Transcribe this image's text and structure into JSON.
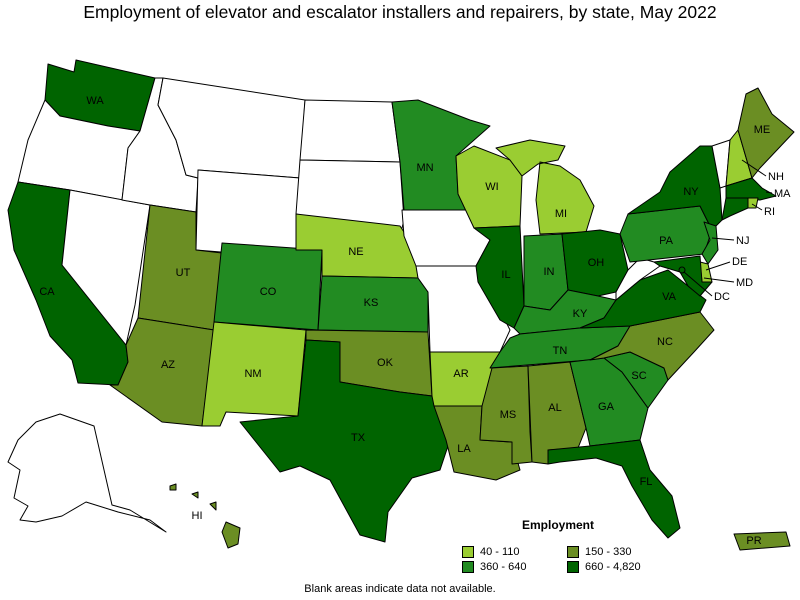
{
  "title": "Employment of elevator and escalator installers and repairers, by state, May 2022",
  "footnote": "Blank areas indicate data not available.",
  "legend": {
    "title": "Employment",
    "bins": [
      {
        "label": "40 - 110",
        "color": "#9acd32"
      },
      {
        "label": "150 - 330",
        "color": "#6b8e23"
      },
      {
        "label": "360 - 640",
        "color": "#228b22"
      },
      {
        "label": "660 - 4,820",
        "color": "#006400"
      }
    ]
  },
  "colors": {
    "no_data": "#ffffff",
    "bin1": "#9acd32",
    "bin2": "#6b8e23",
    "bin3": "#228b22",
    "bin4": "#006400"
  },
  "states": [
    {
      "abbr": "WA",
      "bin": "bin4"
    },
    {
      "abbr": "OR",
      "bin": "no_data"
    },
    {
      "abbr": "CA",
      "bin": "bin4"
    },
    {
      "abbr": "NV",
      "bin": "no_data"
    },
    {
      "abbr": "ID",
      "bin": "no_data"
    },
    {
      "abbr": "MT",
      "bin": "no_data"
    },
    {
      "abbr": "WY",
      "bin": "no_data"
    },
    {
      "abbr": "UT",
      "bin": "bin2"
    },
    {
      "abbr": "AZ",
      "bin": "bin2"
    },
    {
      "abbr": "CO",
      "bin": "bin3"
    },
    {
      "abbr": "NM",
      "bin": "bin1"
    },
    {
      "abbr": "ND",
      "bin": "no_data"
    },
    {
      "abbr": "SD",
      "bin": "no_data"
    },
    {
      "abbr": "NE",
      "bin": "bin1"
    },
    {
      "abbr": "KS",
      "bin": "bin3"
    },
    {
      "abbr": "OK",
      "bin": "bin2"
    },
    {
      "abbr": "TX",
      "bin": "bin4"
    },
    {
      "abbr": "MN",
      "bin": "bin3"
    },
    {
      "abbr": "IA",
      "bin": "no_data"
    },
    {
      "abbr": "MO",
      "bin": "no_data"
    },
    {
      "abbr": "AR",
      "bin": "bin1"
    },
    {
      "abbr": "LA",
      "bin": "bin2"
    },
    {
      "abbr": "WI",
      "bin": "bin1"
    },
    {
      "abbr": "IL",
      "bin": "bin4"
    },
    {
      "abbr": "MI",
      "bin": "bin1"
    },
    {
      "abbr": "IN",
      "bin": "bin3"
    },
    {
      "abbr": "OH",
      "bin": "bin4"
    },
    {
      "abbr": "KY",
      "bin": "bin3"
    },
    {
      "abbr": "TN",
      "bin": "bin3"
    },
    {
      "abbr": "MS",
      "bin": "bin2"
    },
    {
      "abbr": "AL",
      "bin": "bin2"
    },
    {
      "abbr": "GA",
      "bin": "bin3"
    },
    {
      "abbr": "FL",
      "bin": "bin4"
    },
    {
      "abbr": "SC",
      "bin": "bin3"
    },
    {
      "abbr": "NC",
      "bin": "bin2"
    },
    {
      "abbr": "VA",
      "bin": "bin4"
    },
    {
      "abbr": "WV",
      "bin": "no_data"
    },
    {
      "abbr": "PA",
      "bin": "bin3"
    },
    {
      "abbr": "NY",
      "bin": "bin4"
    },
    {
      "abbr": "VT",
      "bin": "no_data"
    },
    {
      "abbr": "NH",
      "bin": "bin1"
    },
    {
      "abbr": "ME",
      "bin": "bin2"
    },
    {
      "abbr": "MA",
      "bin": "bin4"
    },
    {
      "abbr": "RI",
      "bin": "bin1"
    },
    {
      "abbr": "CT",
      "bin": "bin4"
    },
    {
      "abbr": "NJ",
      "bin": "bin3"
    },
    {
      "abbr": "DE",
      "bin": "bin1"
    },
    {
      "abbr": "MD",
      "bin": "bin4"
    },
    {
      "abbr": "DC",
      "bin": "bin4"
    },
    {
      "abbr": "AK",
      "bin": "no_data"
    },
    {
      "abbr": "HI",
      "bin": "bin2"
    },
    {
      "abbr": "PR",
      "bin": "bin2"
    }
  ]
}
